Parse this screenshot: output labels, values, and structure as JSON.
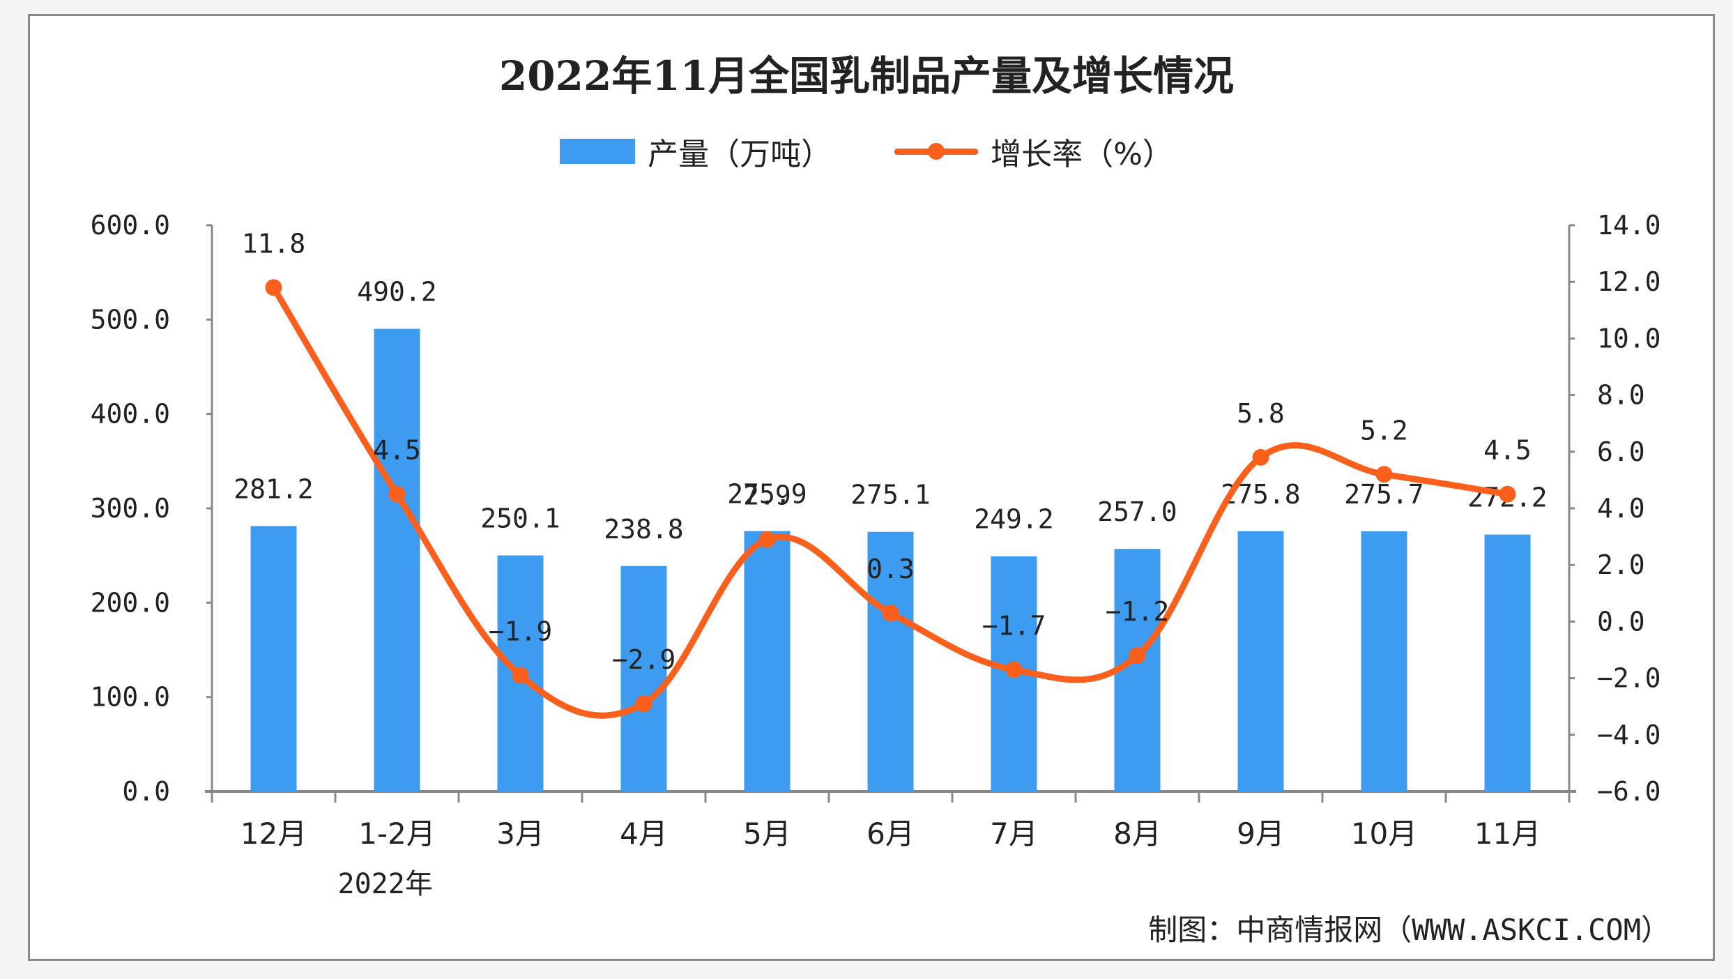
{
  "title": "2022年11月全国乳制品产量及增长情况",
  "legend": {
    "bar_label": "产量（万吨）",
    "line_label": "增长率（%）"
  },
  "colors": {
    "bar": "#3d9cf0",
    "line": "#fb5f1c",
    "axis": "#888888",
    "text": "#222222"
  },
  "footer": "制图：中商情报网（WWW.ASKCI.COM）",
  "x_group_label": "2022年",
  "chart_data": {
    "type": "bar+line",
    "title": "2022年11月全国乳制品产量及增长情况",
    "categories": [
      "12月",
      "1-2月",
      "3月",
      "4月",
      "5月",
      "6月",
      "7月",
      "8月",
      "9月",
      "10月",
      "11月"
    ],
    "category_group": {
      "label": "2022年",
      "under": "1-2月"
    },
    "series": [
      {
        "name": "产量（万吨）",
        "type": "bar",
        "axis": "left",
        "values": [
          281.2,
          490.2,
          250.1,
          238.8,
          275.9,
          275.1,
          249.2,
          257.0,
          275.8,
          275.7,
          272.2
        ]
      },
      {
        "name": "增长率（%）",
        "type": "line",
        "axis": "right",
        "smooth": true,
        "markers": true,
        "values": [
          11.8,
          4.5,
          -1.9,
          -2.9,
          2.9,
          0.3,
          -1.7,
          -1.2,
          5.8,
          5.2,
          4.5
        ]
      }
    ],
    "left_axis": {
      "ylim": [
        0,
        600
      ],
      "ticks": [
        "0.0",
        "100.0",
        "200.0",
        "300.0",
        "400.0",
        "500.0",
        "600.0"
      ]
    },
    "right_axis": {
      "ylim": [
        -6,
        14
      ],
      "ticks": [
        "-6.0",
        "-4.0",
        "-2.0",
        "0.0",
        "2.0",
        "4.0",
        "6.0",
        "8.0",
        "10.0",
        "12.0",
        "14.0"
      ]
    },
    "legend_position": "top",
    "grid": false,
    "source": "制图：中商情报网（WWW.ASKCI.COM）"
  }
}
